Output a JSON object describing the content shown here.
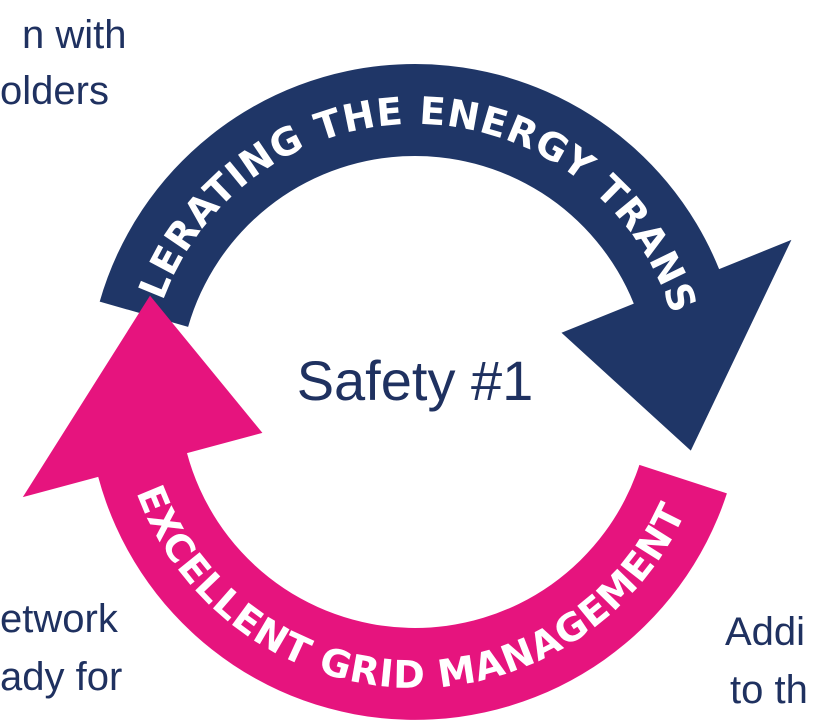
{
  "left_top_text": [
    "n with",
    "olders"
  ],
  "left_bottom_text": [
    "etwork",
    "ady for"
  ],
  "right_bottom_text": [
    "Addi",
    "to th"
  ],
  "arrows": [
    {
      "label": "ACCELERATING THE ENERGY TRANSITION"
    },
    {
      "label": "EXCELLENT GRID MANAGEMENT"
    }
  ],
  "center": "Safety #1"
}
